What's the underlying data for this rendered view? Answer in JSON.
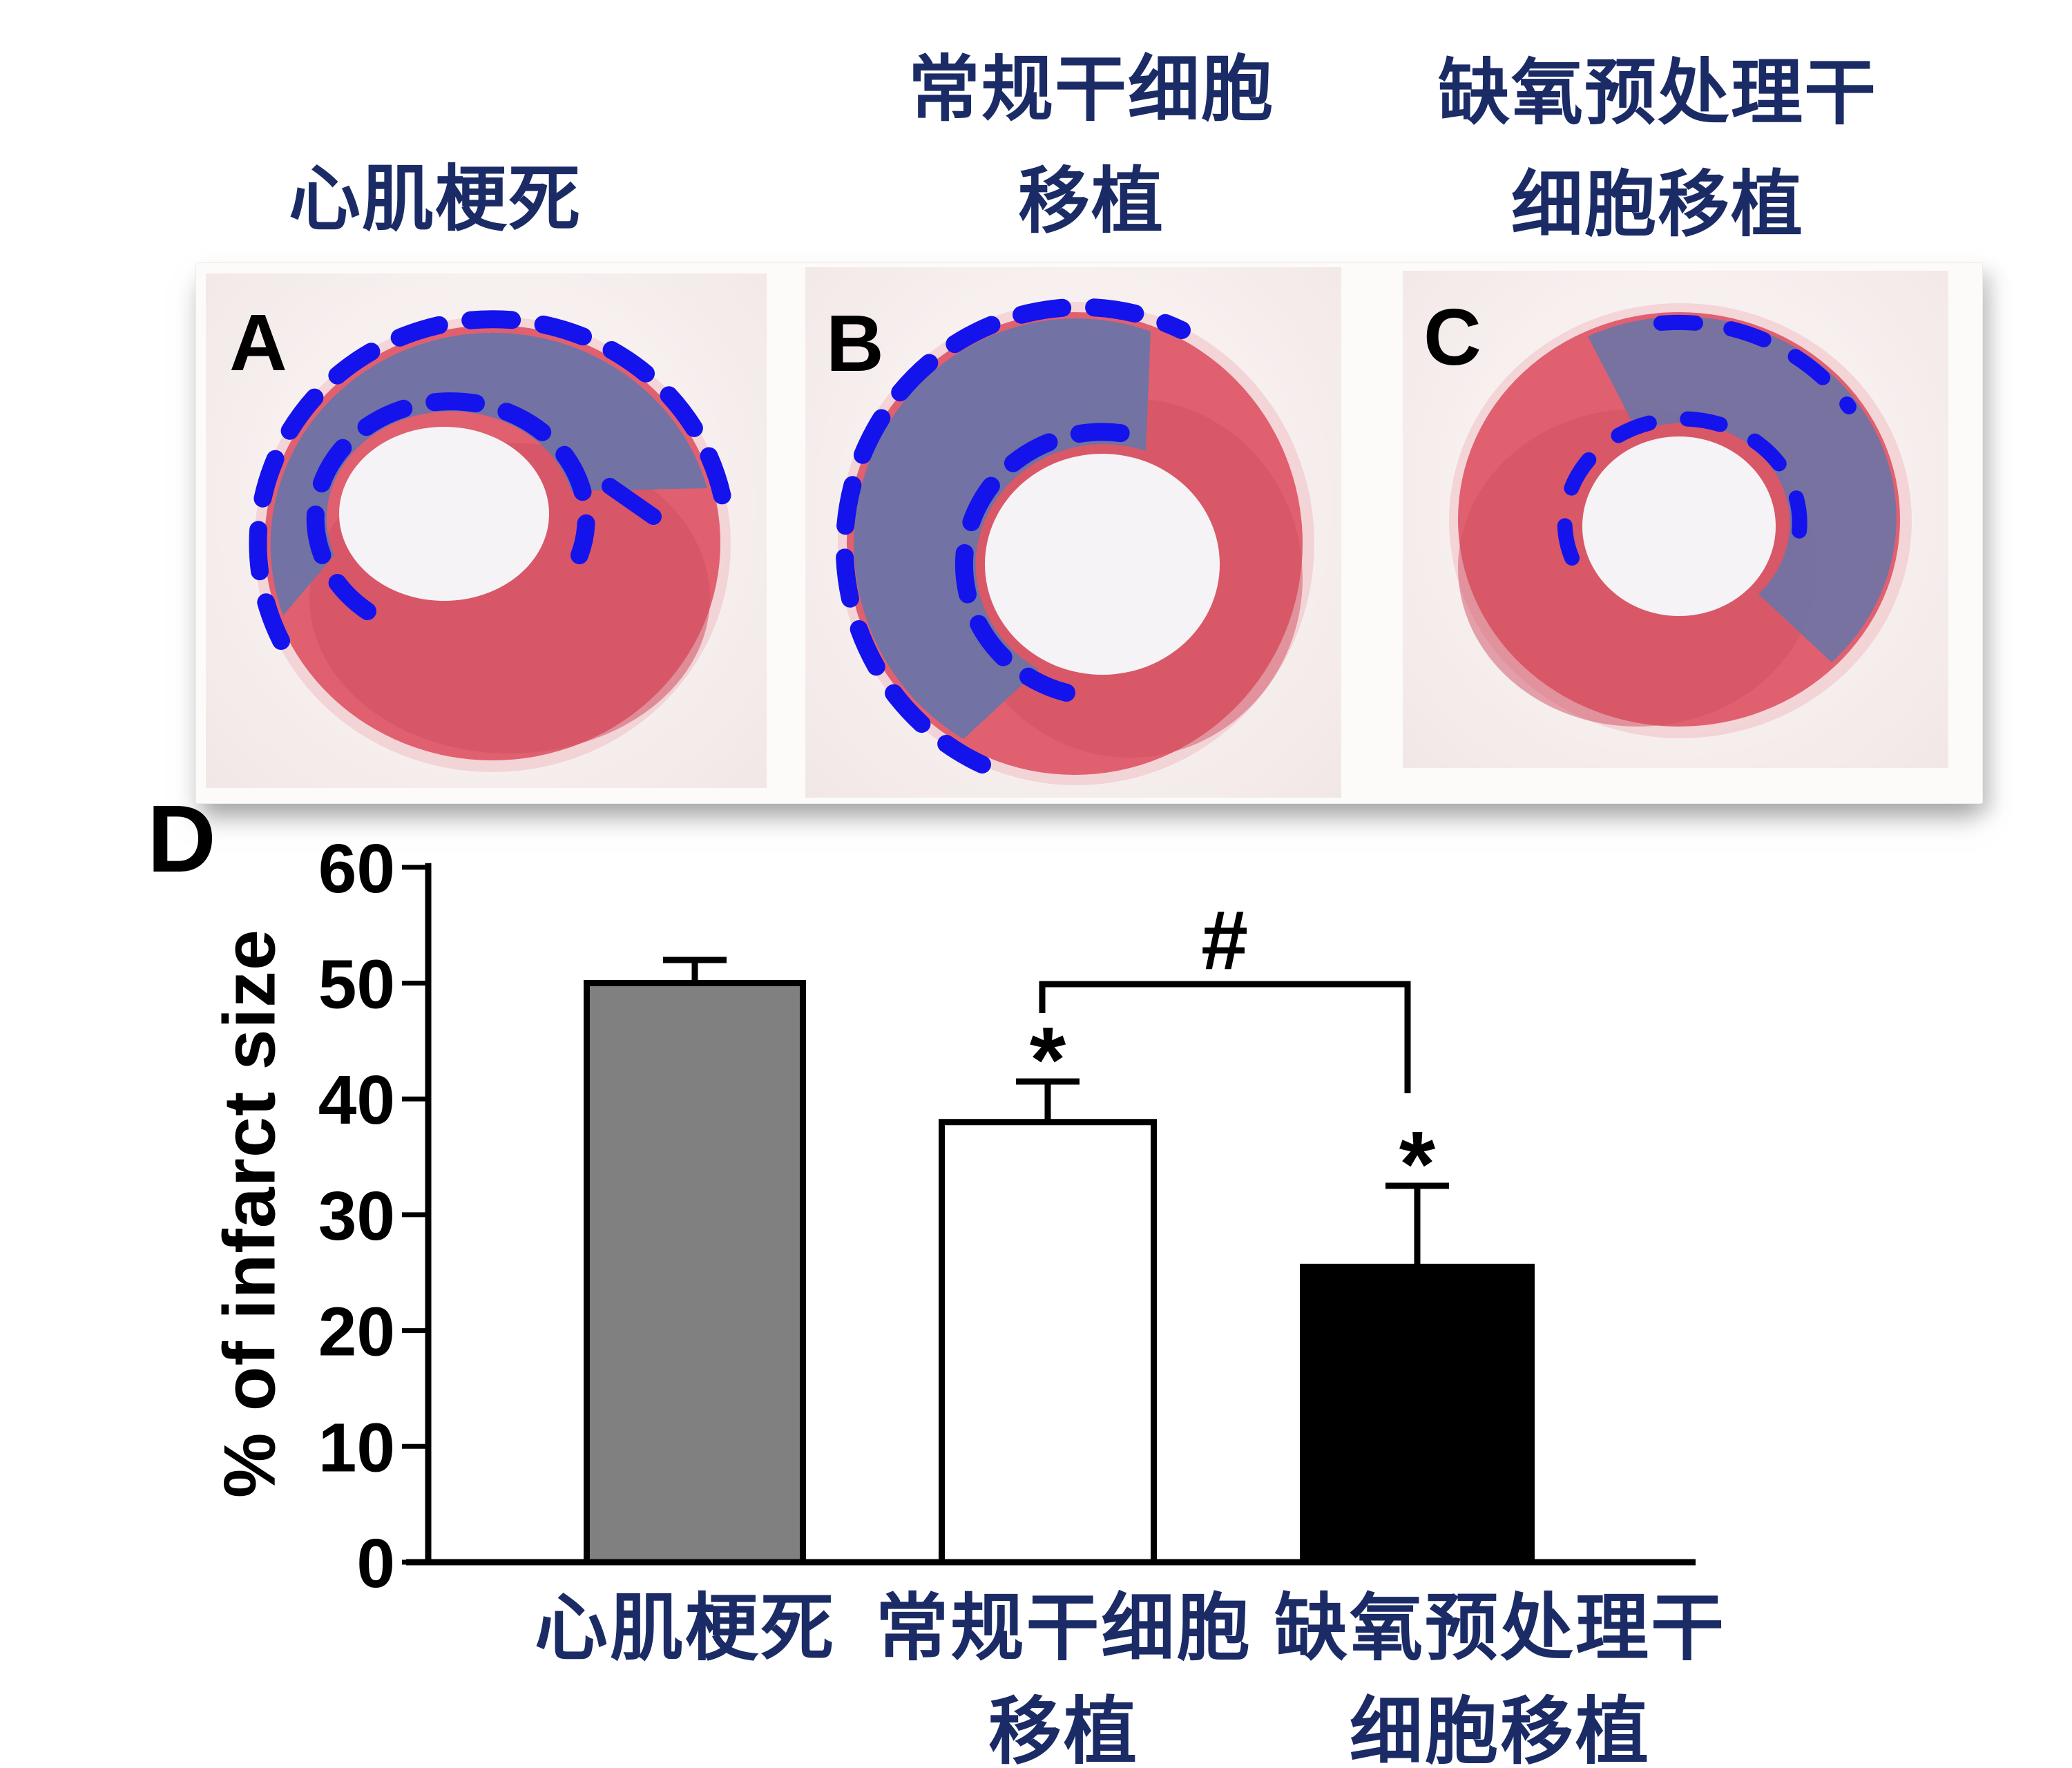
{
  "figure": {
    "histology": {
      "headers": [
        {
          "line1": "心肌梗死",
          "line2": ""
        },
        {
          "line1": "常规干细胞",
          "line2": "移植"
        },
        {
          "line1": "缺氧预处理干",
          "line2": "细胞移植"
        }
      ],
      "panels": [
        {
          "label": "A"
        },
        {
          "label": "B"
        },
        {
          "label": "C"
        }
      ],
      "colors": {
        "header_text": "#1b2b66",
        "panel_letter": "#000000",
        "tissue_red": "#e0606f",
        "tissue_red_dark": "#d05062",
        "tissue_red_halo": "#efb4ba",
        "lumen_white": "#f5f3f5",
        "infarct_blue": "#6974a8",
        "dashed_outline_blue": "#1413ec",
        "slide_background": "#f7f0ef",
        "strip_background": "#fcfbfa"
      }
    },
    "panel_d_label": "D"
  },
  "chart_data": {
    "type": "bar",
    "title": "",
    "xlabel": "",
    "ylabel": "% of infarct size",
    "ylim": [
      0,
      60
    ],
    "yticks": [
      0,
      10,
      20,
      30,
      40,
      50,
      60
    ],
    "grid": false,
    "legend": null,
    "categories": [
      "心肌梗死",
      "常规干细胞移植",
      "缺氧预处理干细胞移植"
    ],
    "category_label_lines": [
      [
        "心肌梗死"
      ],
      [
        "常规干细胞",
        "移植"
      ],
      [
        "缺氧预处理干",
        "细胞移植"
      ]
    ],
    "values": [
      50,
      38,
      25.5
    ],
    "error_plus": [
      2,
      3.5,
      7
    ],
    "bar_fills": [
      "#808080",
      "#ffffff",
      "#000000"
    ],
    "bar_edge_color": "#000000",
    "tick_label_color": "#000000",
    "category_label_color": "#1b2b66",
    "significance": {
      "stars": [
        {
          "bar_index": 1,
          "symbol": "*"
        },
        {
          "bar_index": 2,
          "symbol": "*"
        }
      ],
      "comparison": {
        "symbol": "#",
        "from_bar": 1,
        "to_bar": 2
      }
    }
  }
}
